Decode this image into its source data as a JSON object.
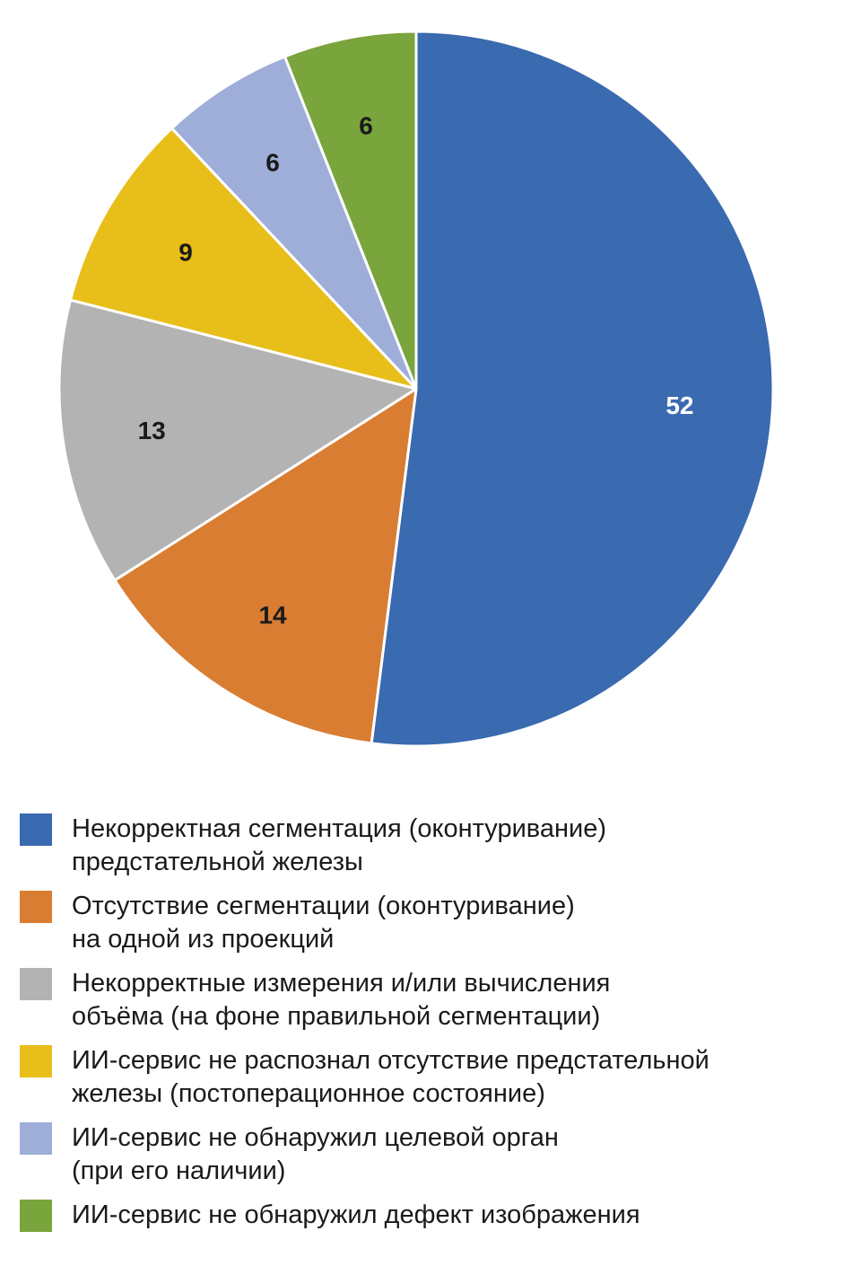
{
  "chart_data": {
    "type": "pie",
    "categories": [
      "Некорректная сегментация (оконтуривание)\nпредстательной железы",
      "Отсутствие сегментации (оконтуривание)\nна одной из проекций",
      "Некорректные измерения и/или вычисления\nобъёма (на фоне правильной сегментации)",
      "ИИ-сервис не распознал отсутствие предстательной\nжелезы (постоперационное состояние)",
      "ИИ-сервис не обнаружил целевой орган\n(при его наличии)",
      "ИИ-сервис не обнаружил дефект изображения"
    ],
    "values": [
      52,
      14,
      13,
      9,
      6,
      6
    ],
    "data_labels": [
      "52",
      "14",
      "13",
      "9",
      "6",
      "6"
    ],
    "colors": [
      "#3a6ab0",
      "#d97d32",
      "#b3b3b3",
      "#e8be1a",
      "#9eaed8",
      "#7aa43c"
    ],
    "label_colors": [
      "#ffffff",
      "#1a1a1a",
      "#1a1a1a",
      "#1a1a1a",
      "#1a1a1a",
      "#1a1a1a"
    ],
    "start_angle_deg": 0,
    "direction": "clockwise",
    "legend_position": "bottom"
  }
}
